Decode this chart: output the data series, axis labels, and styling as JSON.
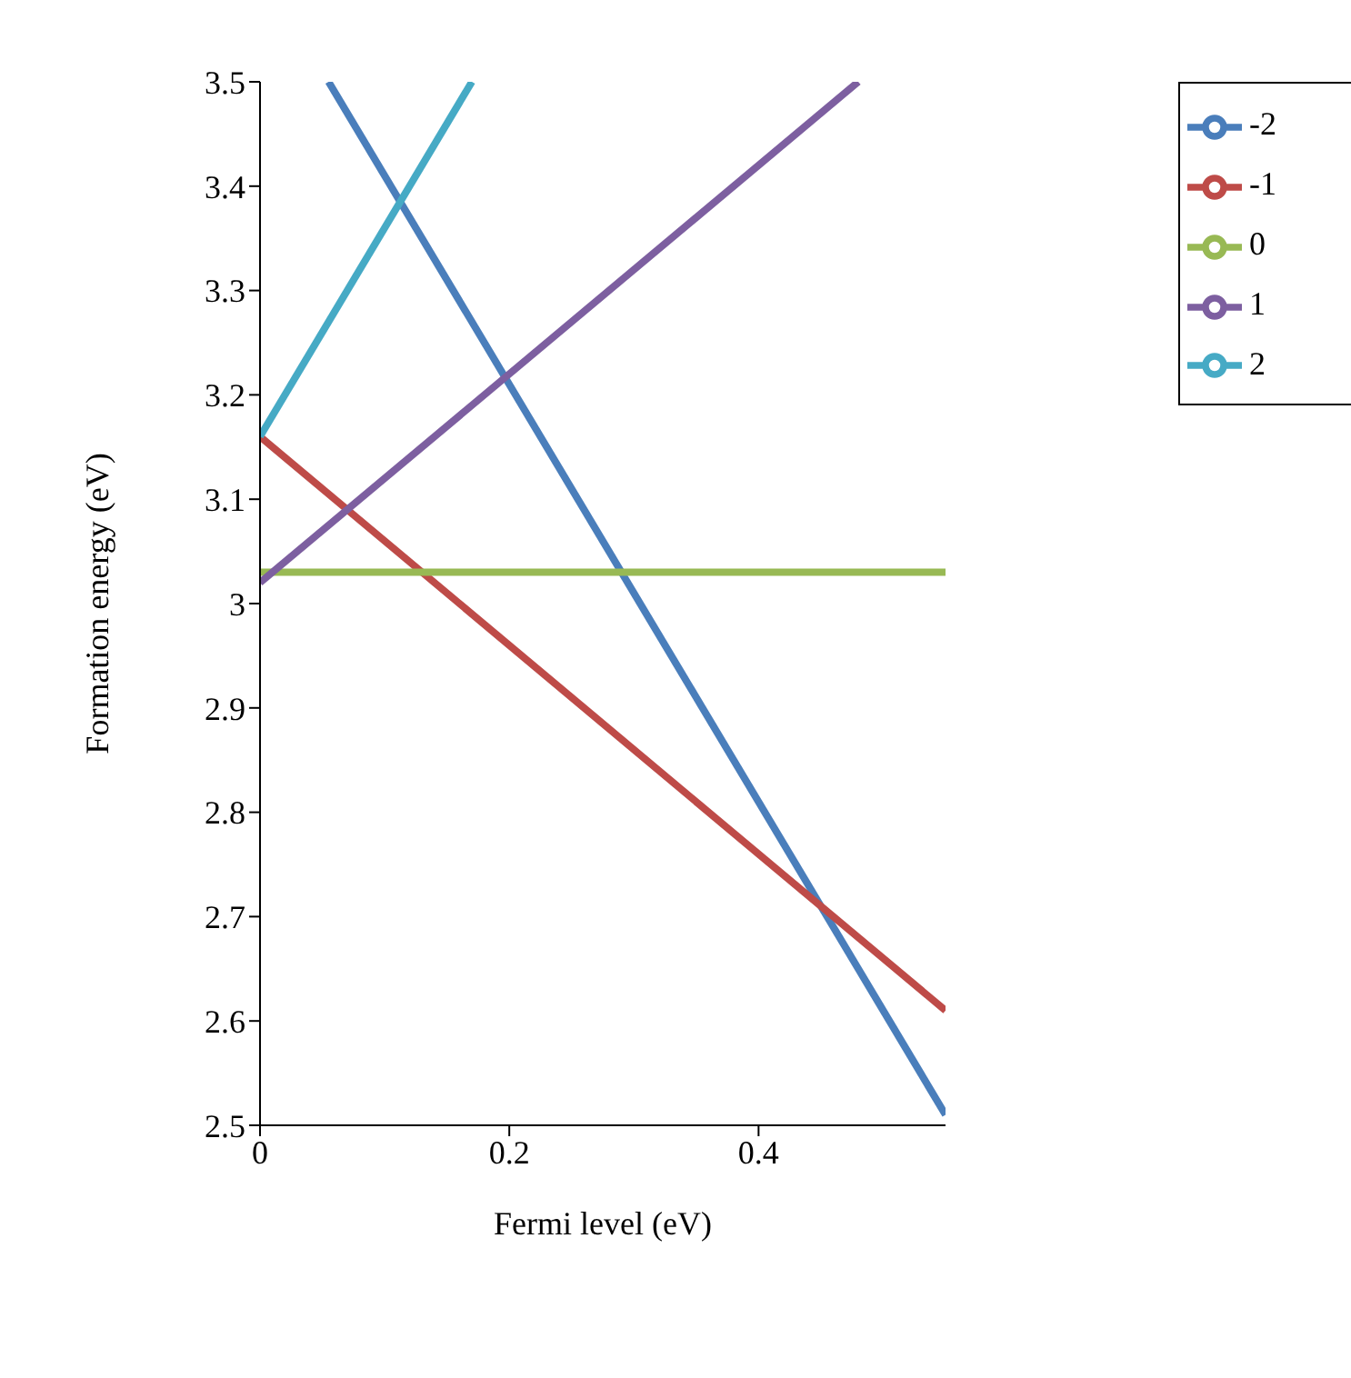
{
  "chart_data": {
    "type": "line",
    "xlabel": "Fermi level (eV)",
    "ylabel": "Formation energy (eV)",
    "xlim": [
      0,
      0.55
    ],
    "xticks": [
      0,
      0.2,
      0.4
    ],
    "ylim": [
      2.5,
      3.5
    ],
    "yticks": [
      2.5,
      2.6,
      2.7,
      2.8,
      2.9,
      3,
      3.1,
      3.2,
      3.3,
      3.4,
      3.5
    ],
    "grid": false,
    "legend": "top right",
    "marker": "none",
    "line_style": "solid",
    "series": [
      {
        "name": "-2",
        "color": "#4a7ebb",
        "x": [
          0.055,
          0.55
        ],
        "values": [
          3.5,
          2.51
        ]
      },
      {
        "name": "-1",
        "color": "#be4b48",
        "x": [
          0,
          0.55
        ],
        "values": [
          3.16,
          2.61
        ]
      },
      {
        "name": "0",
        "color": "#98b954",
        "x": [
          0,
          0.55
        ],
        "values": [
          3.03,
          3.03
        ]
      },
      {
        "name": "1",
        "color": "#7d5fa0",
        "x": [
          0,
          0.48
        ],
        "values": [
          3.02,
          3.5
        ]
      },
      {
        "name": "2",
        "color": "#46aac5",
        "x": [
          0,
          0.17
        ],
        "values": [
          3.16,
          3.5
        ]
      }
    ]
  }
}
